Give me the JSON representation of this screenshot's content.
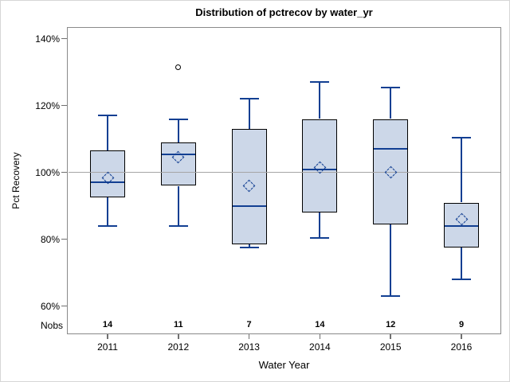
{
  "chart_data": {
    "type": "boxplot",
    "title": "Distribution of pctrecov by water_yr",
    "xlabel": "Water Year",
    "ylabel": "Pct Recovery",
    "nobs_row_label": "Nobs",
    "y_axis": {
      "tick_values": [
        140,
        120,
        100,
        80,
        60
      ],
      "tick_labels": [
        "140%",
        "120%",
        "100%",
        "80%",
        "60%"
      ],
      "range_shown": [
        55,
        145
      ]
    },
    "reference_line_y": 100,
    "grid": "off",
    "legend": "none",
    "categories": [
      "2011",
      "2012",
      "2013",
      "2014",
      "2015",
      "2016"
    ],
    "nobs": [
      14,
      11,
      7,
      14,
      12,
      9
    ],
    "series": [
      {
        "category": "2011",
        "nobs": 14,
        "whisker_low": 84,
        "q1": 92.5,
        "median": 97,
        "q3": 106.5,
        "whisker_high": 117,
        "mean": 98.5,
        "outliers": []
      },
      {
        "category": "2012",
        "nobs": 11,
        "whisker_low": 84,
        "q1": 96,
        "median": 105.5,
        "q3": 109,
        "whisker_high": 116,
        "mean": 104.5,
        "outliers": [
          131.5
        ]
      },
      {
        "category": "2013",
        "nobs": 7,
        "whisker_low": 77.5,
        "q1": 78.5,
        "median": 90,
        "q3": 113,
        "whisker_high": 122,
        "mean": 96,
        "outliers": []
      },
      {
        "category": "2014",
        "nobs": 14,
        "whisker_low": 80.5,
        "q1": 88,
        "median": 101,
        "q3": 116,
        "whisker_high": 127,
        "mean": 101.5,
        "outliers": []
      },
      {
        "category": "2015",
        "nobs": 12,
        "whisker_low": 63,
        "q1": 84.5,
        "median": 107,
        "q3": 116,
        "whisker_high": 125.5,
        "mean": 100,
        "outliers": []
      },
      {
        "category": "2016",
        "nobs": 9,
        "whisker_low": 68,
        "q1": 77.5,
        "median": 84,
        "q3": 91,
        "whisker_high": 110.5,
        "mean": 86,
        "outliers": []
      }
    ],
    "colors": {
      "box_fill": "#ccd7e8",
      "box_border": "#000000",
      "line_blue": "#123f92",
      "reference_line": "#a6a6a6",
      "frame_gray": "#8a8a8a",
      "tick_gray": "#707070",
      "outlier_stroke": "#000000",
      "figure_border": "#d6d6d6"
    }
  }
}
